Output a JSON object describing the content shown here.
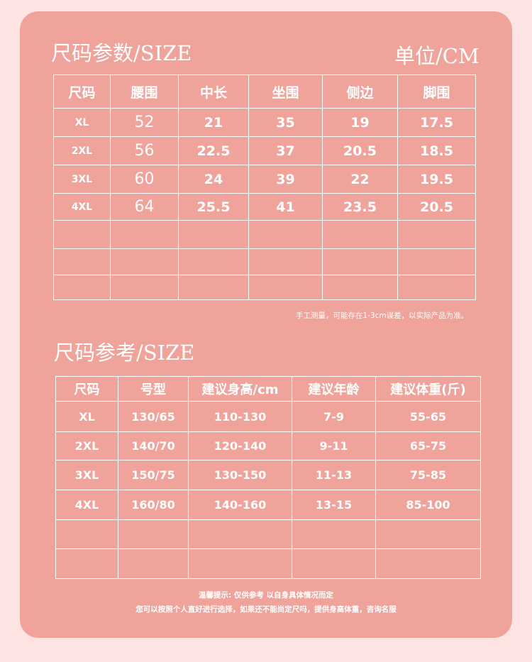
{
  "colors": {
    "background": "#fde4e3",
    "card": "#efa39a",
    "text": "#ffffff"
  },
  "params": {
    "title": "尺码参数/SIZE",
    "unit": "单位/CM",
    "headers": [
      "尺码",
      "腰围",
      "中长",
      "坐围",
      "侧边",
      "脚围"
    ],
    "rows": [
      [
        "XL",
        "52",
        "21",
        "35",
        "19",
        "17.5"
      ],
      [
        "2XL",
        "56",
        "22.5",
        "37",
        "20.5",
        "18.5"
      ],
      [
        "3XL",
        "60",
        "24",
        "39",
        "22",
        "19.5"
      ],
      [
        "4XL",
        "64",
        "25.5",
        "41",
        "23.5",
        "20.5"
      ],
      [
        "",
        "",
        "",
        "",
        "",
        ""
      ],
      [
        "",
        "",
        "",
        "",
        "",
        ""
      ],
      [
        "",
        "",
        "",
        "",
        "",
        ""
      ]
    ],
    "note": "手工测量，可能存在1-3cm误差，以实际产品为准。"
  },
  "reference": {
    "title": "尺码参考/SIZE",
    "headers": [
      "尺码",
      "号型",
      "建议身高/cm",
      "建议年龄",
      "建议体重(斤)"
    ],
    "rows": [
      [
        "XL",
        "130/65",
        "110-130",
        "7-9",
        "55-65"
      ],
      [
        "2XL",
        "140/70",
        "120-140",
        "9-11",
        "65-75"
      ],
      [
        "3XL",
        "150/75",
        "130-150",
        "11-13",
        "75-85"
      ],
      [
        "4XL",
        "160/80",
        "140-160",
        "13-15",
        "85-100"
      ],
      [
        "",
        "",
        "",
        "",
        ""
      ],
      [
        "",
        "",
        "",
        "",
        ""
      ]
    ],
    "tip_line1": "温馨提示: 仅供参考  以自身具体情况而定",
    "tip_line2": "您可以按照个人直好进行选择，如果还不能尚定尺吗，提供身高体重，咨询名服"
  }
}
